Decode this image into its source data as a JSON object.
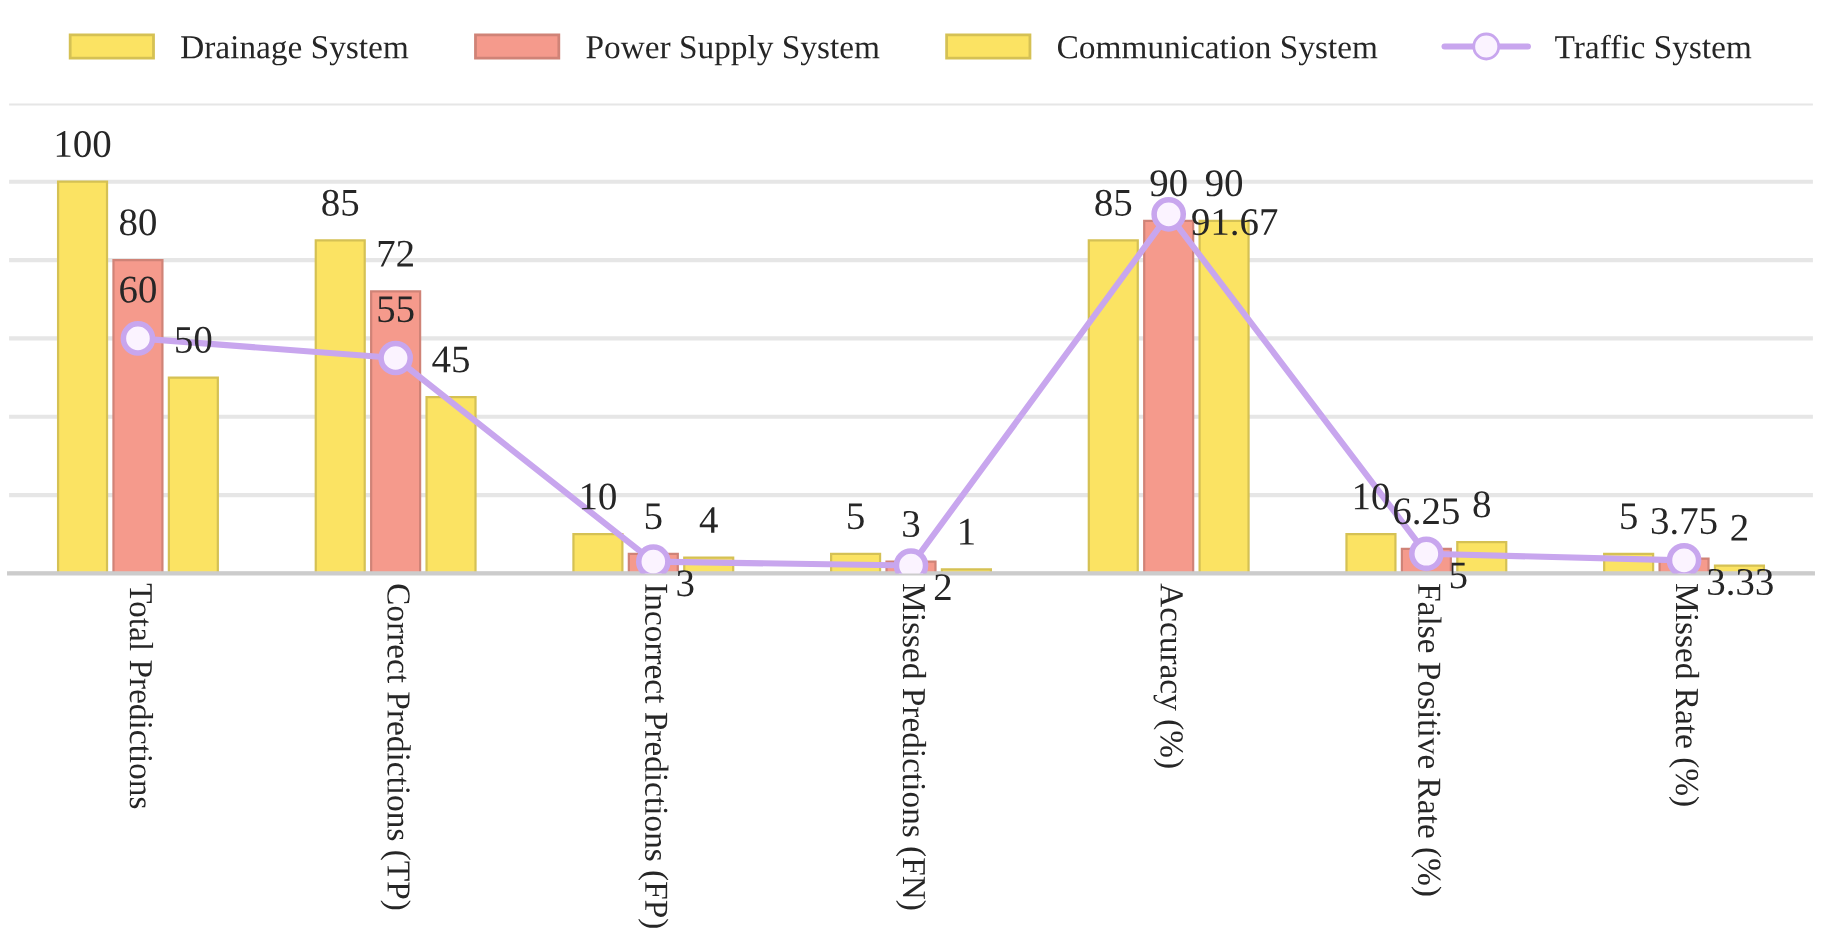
{
  "chart_data": {
    "type": "bar",
    "categories": [
      "Total Predictions",
      "Correct Predictions (TP)",
      "Incorrect Predictions (FP)",
      "Missed Predictions (FN)",
      "Accuracy (%)",
      "False Positive Rate (%)",
      "Missed Rate (%)"
    ],
    "series": [
      {
        "name": "Drainage System",
        "color": "#fbe363",
        "values": [
          100,
          85,
          10,
          5,
          85,
          10,
          5
        ]
      },
      {
        "name": "Power Supply System",
        "color": "#f59a8c",
        "values": [
          80,
          72,
          5,
          3,
          90,
          6.25,
          3.75
        ]
      },
      {
        "name": "Communication System",
        "color": "#fbe363",
        "values": [
          50,
          45,
          4,
          1,
          90,
          8,
          2
        ]
      },
      {
        "name": "Traffic System",
        "type": "line",
        "color": "#c8a6ee",
        "values": [
          60,
          55,
          3,
          2,
          91.67,
          5,
          3.33
        ]
      }
    ],
    "data_labels": true,
    "grid": "y",
    "legend": "top",
    "tick_labels": "x",
    "marker": "circle"
  }
}
